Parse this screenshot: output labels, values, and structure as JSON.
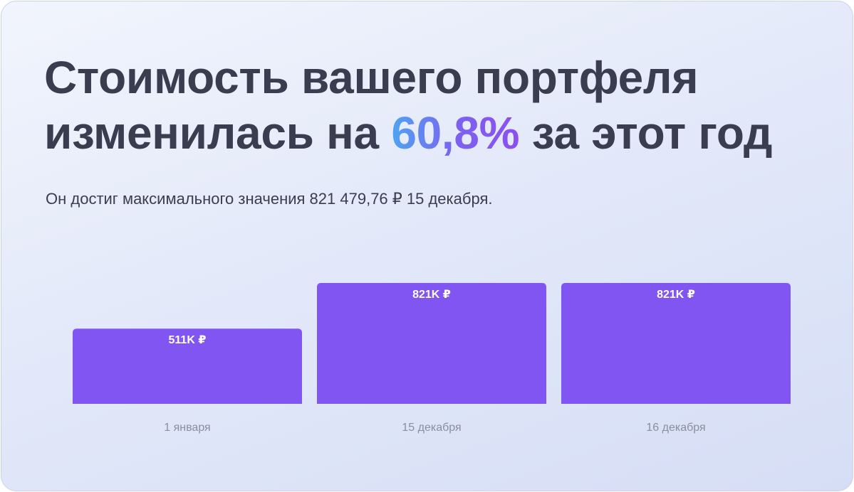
{
  "headline": {
    "line1": "Стоимость вашего портфеля",
    "line2_before": "изменилась на",
    "highlight": "60,8%",
    "line2_after": "за этот год"
  },
  "subtitle": "Он достиг максимального значения 821 479,76 ₽ 15 декабря.",
  "colors": {
    "bar": "#8055f1",
    "headline_text": "#3a3d4f",
    "highlight_gradient_start": "#4ea4f2",
    "highlight_gradient_end": "#8c4ff0",
    "category_text": "#8a8f9e"
  },
  "chart_data": {
    "type": "bar",
    "categories": [
      "1 января",
      "15 декабря",
      "16 декабря"
    ],
    "values": [
      511,
      821,
      821
    ],
    "data_labels": [
      "511K ₽",
      "821K ₽",
      "821K ₽"
    ],
    "title": "",
    "xlabel": "",
    "ylabel": "",
    "grid": false
  }
}
